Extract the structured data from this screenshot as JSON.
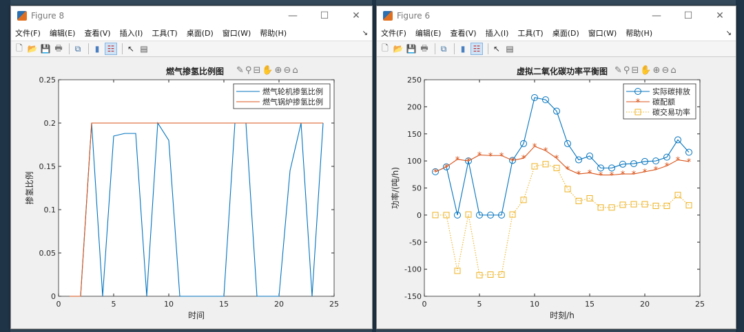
{
  "windows": [
    {
      "title": "Figure 8",
      "menu": [
        "文件(F)",
        "编辑(E)",
        "查看(V)",
        "插入(I)",
        "工具(T)",
        "桌面(D)",
        "窗口(W)",
        "帮助(H)"
      ],
      "window_controls": {
        "minimize": "—",
        "maximize": "☐",
        "close": "✕"
      }
    },
    {
      "title": "Figure 6",
      "menu": [
        "文件(F)",
        "编辑(E)",
        "查看(V)",
        "插入(I)",
        "工具(T)",
        "桌面(D)",
        "窗口(W)",
        "帮助(H)"
      ],
      "window_controls": {
        "minimize": "—",
        "maximize": "☐",
        "close": "✕"
      }
    }
  ],
  "toolbar_icons": [
    "new-file-icon",
    "open-folder-icon",
    "save-icon",
    "print-icon",
    "link-plot-icon",
    "colorbar-icon",
    "legend-icon",
    "pointer-icon",
    "property-editor-icon"
  ],
  "axes_toolbar_icons": [
    "brush-icon",
    "data-tip-icon",
    "data-cursor-icon",
    "pan-icon",
    "zoom-in-icon",
    "zoom-out-icon",
    "home-icon"
  ],
  "chart_data": [
    {
      "type": "line",
      "title": "燃气掺氢比例图",
      "xlabel": "时间",
      "ylabel": "掺氢比例",
      "xlim": [
        0,
        25
      ],
      "ylim": [
        0,
        0.25
      ],
      "xticks": [
        "0",
        "5",
        "10",
        "15",
        "20",
        "25"
      ],
      "yticks": [
        "0",
        "0.05",
        "0.1",
        "0.15",
        "0.2",
        "0.25"
      ],
      "legend_position": "top-right",
      "x": [
        1,
        2,
        3,
        4,
        5,
        6,
        7,
        8,
        9,
        10,
        11,
        12,
        13,
        14,
        15,
        16,
        17,
        18,
        19,
        20,
        21,
        22,
        23,
        24
      ],
      "series": [
        {
          "name": "燃气轮机掺氢比例",
          "color": "#0072BD",
          "values": [
            0,
            0,
            0.2,
            0,
            0.185,
            0.188,
            0.188,
            0,
            0.2,
            0.18,
            0,
            0,
            0,
            0,
            0,
            0.2,
            0.2,
            0,
            0,
            0,
            0.145,
            0.2,
            0,
            0.2
          ]
        },
        {
          "name": "燃气锅炉掺氢比例",
          "color": "#D95319",
          "values": [
            0,
            0,
            0.2,
            0.2,
            0.2,
            0.2,
            0.2,
            0.2,
            0.2,
            0.2,
            0.2,
            0.2,
            0.2,
            0.2,
            0.2,
            0.2,
            0.2,
            0.2,
            0.2,
            0.2,
            0.2,
            0.2,
            0.2,
            0.2
          ]
        }
      ]
    },
    {
      "type": "line",
      "title": "虚拟二氧化碳功率平衡图",
      "xlabel": "时刻/h",
      "ylabel": "功率/(吨/h)",
      "xlim": [
        0,
        25
      ],
      "ylim": [
        -150,
        250
      ],
      "xticks": [
        "0",
        "5",
        "10",
        "15",
        "20",
        "25"
      ],
      "yticks": [
        "-150",
        "-100",
        "-50",
        "0",
        "50",
        "100",
        "150",
        "200",
        "250"
      ],
      "legend_position": "top-right",
      "x": [
        1,
        2,
        3,
        4,
        5,
        6,
        7,
        8,
        9,
        10,
        11,
        12,
        13,
        14,
        15,
        16,
        17,
        18,
        19,
        20,
        21,
        22,
        23,
        24
      ],
      "series": [
        {
          "name": "实际碳排放",
          "color": "#0072BD",
          "marker": "circle",
          "line": "solid",
          "values": [
            80,
            89,
            0,
            100,
            0,
            0,
            0,
            101,
            132,
            217,
            213,
            192,
            132,
            102,
            109,
            87,
            87,
            94,
            95,
            99,
            100,
            107,
            139,
            116
          ]
        },
        {
          "name": "碳配额",
          "color": "#D95319",
          "marker": "asterisk",
          "line": "solid",
          "values": [
            80,
            89,
            103,
            100,
            111,
            110,
            110,
            101,
            105,
            127,
            119,
            105,
            85,
            76,
            78,
            74,
            74,
            76,
            76,
            80,
            84,
            91,
            102,
            99
          ]
        },
        {
          "name": "碳交易功率",
          "color": "#EDB120",
          "marker": "square",
          "line": "dotted",
          "values": [
            0,
            0,
            -103,
            1,
            -111,
            -110,
            -110,
            1,
            28,
            90,
            94,
            87,
            48,
            26,
            31,
            14,
            14,
            19,
            20,
            20,
            17,
            17,
            37,
            18
          ]
        }
      ]
    }
  ]
}
